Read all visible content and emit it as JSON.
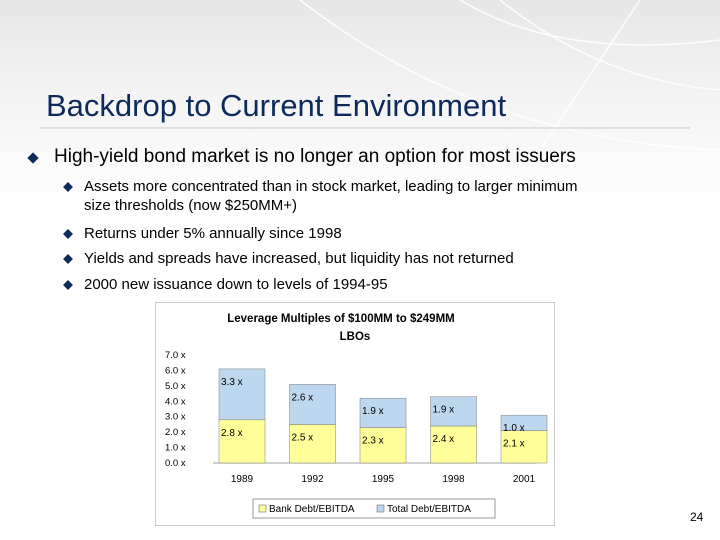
{
  "slide": {
    "title": "Backdrop to Current Environment",
    "bullet_main": "High-yield bond market is no longer an option for most issuers",
    "sub_bullets": [
      "Assets more concentrated than in stock market, leading to larger minimum",
      "size thresholds (now $250MM+)",
      "Returns under 5% annually since 1998",
      "Yields and spreads have increased, but liquidity has not returned",
      "2000 new issuance down to levels of 1994-95"
    ],
    "page_number": "24"
  },
  "colors": {
    "title": "#0d2a5a",
    "bank_debt": "#ffff99",
    "total_debt": "#bdd7ee",
    "chart_bg": "#ffffff"
  },
  "chart_data": {
    "type": "bar",
    "title_line1": "Leverage Multiples of $100MM to $249MM",
    "title_line2": "LBOs",
    "categories": [
      "1989",
      "1992",
      "1995",
      "1998",
      "2001"
    ],
    "series": [
      {
        "name": "Bank Debt/EBITDA",
        "values": [
          2.8,
          2.5,
          2.3,
          2.4,
          2.1
        ],
        "labels": [
          "2.8 x",
          "2.5 x",
          "2.3 x",
          "2.4 x",
          "2.1 x"
        ]
      },
      {
        "name": "Total Debt/EBITDA",
        "values": [
          3.3,
          2.6,
          1.9,
          1.9,
          1.0
        ],
        "labels": [
          "3.3 x",
          "2.6 x",
          "1.9 x",
          "1.9 x",
          "1.0 x"
        ]
      }
    ],
    "y_ticks": [
      "0.0 x",
      "1.0 x",
      "2.0 x",
      "3.0 x",
      "4.0 x",
      "5.0 x",
      "6.0 x",
      "7.0 x"
    ],
    "ylim": [
      0,
      7
    ],
    "stacked": true,
    "grid": false,
    "legend_position": "bottom"
  }
}
